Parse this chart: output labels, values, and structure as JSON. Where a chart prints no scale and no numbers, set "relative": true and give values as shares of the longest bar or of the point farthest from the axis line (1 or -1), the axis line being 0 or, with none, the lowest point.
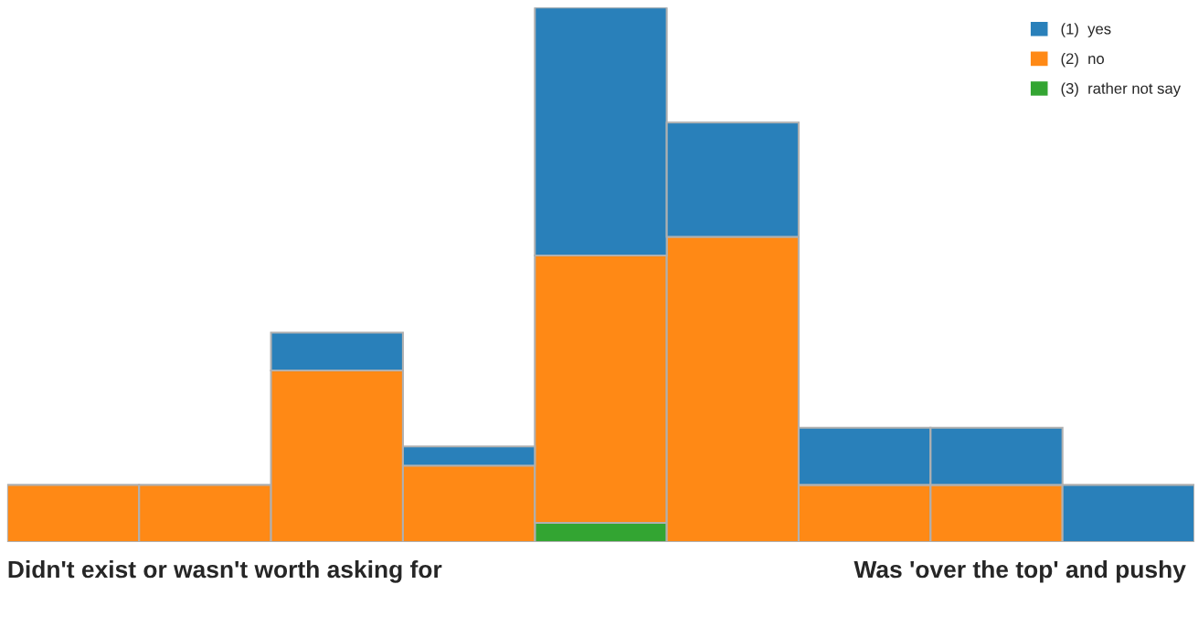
{
  "chart_data": {
    "type": "bar",
    "stacked": true,
    "relative": true,
    "categories": [
      null,
      null,
      null,
      null,
      null,
      null,
      null,
      null,
      null
    ],
    "series": [
      {
        "name": "(3)  rather not say",
        "color": "#33a532",
        "values": [
          0,
          0,
          0,
          0,
          0.036,
          0,
          0,
          0,
          0
        ]
      },
      {
        "name": "(2)  no",
        "color": "#ff8915",
        "values": [
          0.107,
          0.107,
          0.321,
          0.143,
          0.5,
          0.571,
          0.107,
          0.107,
          0
        ]
      },
      {
        "name": "(1)  yes",
        "color": "#2980ba",
        "values": [
          0,
          0,
          0.071,
          0.036,
          0.464,
          0.214,
          0.107,
          0.107,
          0.107
        ]
      }
    ],
    "legend": "top right",
    "annotations": [
      "Didn't exist or wasn't worth asking for",
      "Was 'over the top' and pushy"
    ]
  }
}
